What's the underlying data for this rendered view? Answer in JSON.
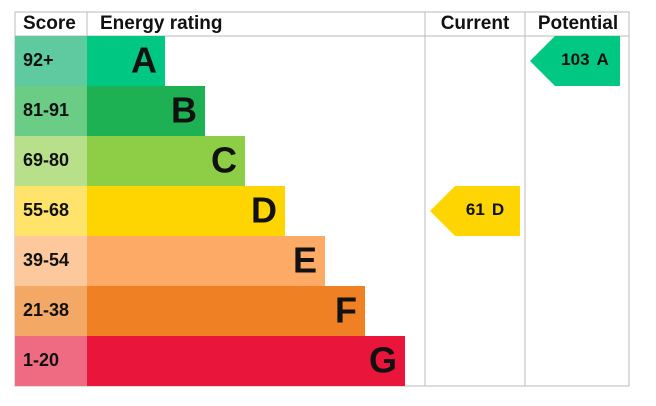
{
  "header": {
    "score": "Score",
    "rating": "Energy rating",
    "current": "Current",
    "potential": "Potential"
  },
  "bands": [
    {
      "score": "92+",
      "letter": "A",
      "color": "#00c781",
      "score_color": "#5fc9a0"
    },
    {
      "score": "81-91",
      "letter": "B",
      "color": "#1db154",
      "score_color": "#6bcc86"
    },
    {
      "score": "69-80",
      "letter": "C",
      "color": "#8dce46",
      "score_color": "#b8e08b"
    },
    {
      "score": "55-68",
      "letter": "D",
      "color": "#ffd500",
      "score_color": "#ffe36b"
    },
    {
      "score": "39-54",
      "letter": "E",
      "color": "#fcaa65",
      "score_color": "#fdc99c"
    },
    {
      "score": "21-38",
      "letter": "F",
      "color": "#ef8023",
      "score_color": "#f4a866"
    },
    {
      "score": "1-20",
      "letter": "G",
      "color": "#e9153b",
      "score_color": "#ef6b82"
    }
  ],
  "current": {
    "value": 61,
    "letter": "D"
  },
  "potential": {
    "value": 103,
    "letter": "A"
  }
}
